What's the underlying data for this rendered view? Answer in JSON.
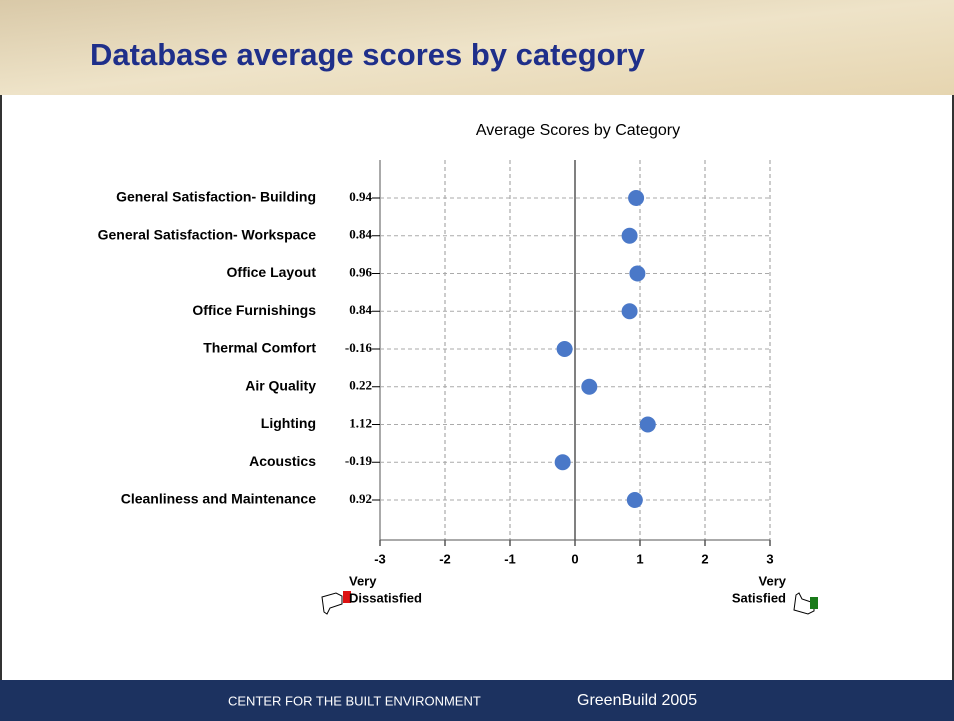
{
  "header": {
    "title": "Database average scores by category"
  },
  "chart_data": {
    "type": "dot",
    "title": "Average Scores by Category",
    "categories": [
      "General Satisfaction- Building",
      "General Satisfaction- Workspace",
      "Office Layout",
      "Office Furnishings",
      "Thermal Comfort",
      "Air Quality",
      "Lighting",
      "Acoustics",
      "Cleanliness and Maintenance"
    ],
    "values": [
      0.94,
      0.84,
      0.96,
      0.84,
      -0.16,
      0.22,
      1.12,
      -0.19,
      0.92
    ],
    "color": "#4a78c8",
    "xlim": [
      -3,
      3
    ],
    "xticks": [
      -3,
      -2,
      -1,
      0,
      1,
      2,
      3
    ],
    "grid": true,
    "x_end_labels": [
      [
        "Very",
        "Dissatisfied"
      ],
      [
        "Very",
        "Satisfied"
      ]
    ]
  },
  "footer": {
    "left": "CENTER FOR THE BUILT ENVIRONMENT",
    "right": "GreenBuild 2005"
  }
}
